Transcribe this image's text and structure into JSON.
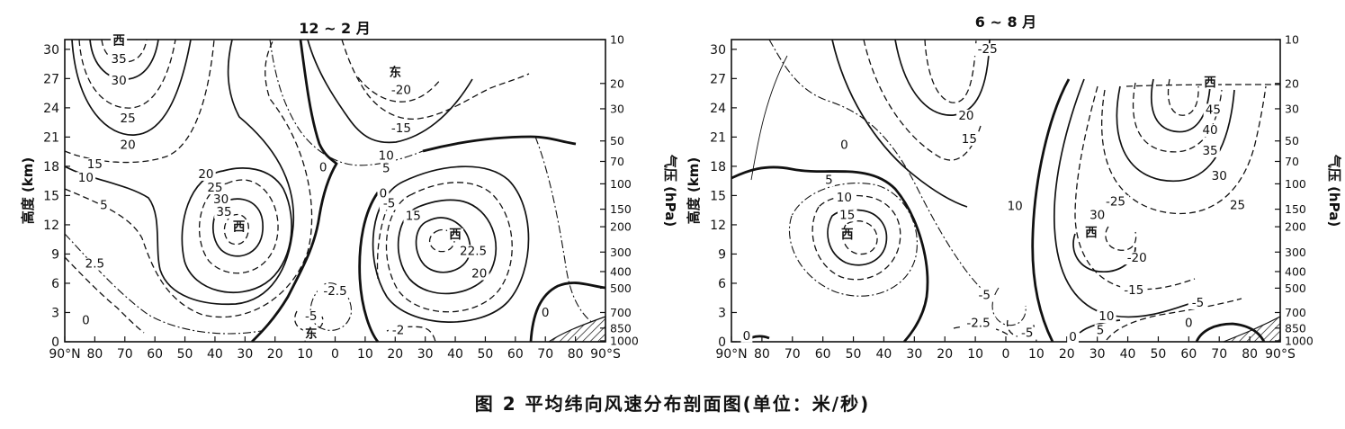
{
  "caption": "图 2   平均纬向风速分布剖面图(单位：米/秒)",
  "chart_data": [
    {
      "type": "contour",
      "title": "12 ~ 2 月",
      "ylabel_left": "高度 (km)",
      "ylabel_right": "气压 (hPa)",
      "x_ticks": [
        "90°N",
        "80",
        "70",
        "60",
        "50",
        "40",
        "30",
        "20",
        "10",
        "0",
        "10",
        "20",
        "30",
        "40",
        "50",
        "60",
        "70",
        "80",
        "90°S"
      ],
      "y_ticks": [
        "0",
        "3",
        "6",
        "9",
        "12",
        "15",
        "18",
        "21",
        "24",
        "27",
        "30"
      ],
      "p_ticks": [
        "1000",
        "850",
        "700",
        "500",
        "400",
        "300",
        "200",
        "150",
        "100",
        "70",
        "50",
        "30",
        "20",
        "10"
      ],
      "xlim": [
        -90,
        90
      ],
      "ylim": [
        0,
        31
      ],
      "contour_labels": [
        {
          "text": "西",
          "lat": -72,
          "h": 30.5
        },
        {
          "text": "35",
          "lat": -72,
          "h": 28.6
        },
        {
          "text": "30",
          "lat": -72,
          "h": 26.4
        },
        {
          "text": "25",
          "lat": -69,
          "h": 22.5
        },
        {
          "text": "20",
          "lat": -69,
          "h": 19.8
        },
        {
          "text": "15",
          "lat": -80,
          "h": 17.8
        },
        {
          "text": "10",
          "lat": -83,
          "h": 16.4
        },
        {
          "text": "5",
          "lat": -77,
          "h": 13.6
        },
        {
          "text": "2.5",
          "lat": -80,
          "h": 7.6
        },
        {
          "text": "0",
          "lat": -83,
          "h": 1.8
        },
        {
          "text": "20",
          "lat": -43,
          "h": 16.8
        },
        {
          "text": "25",
          "lat": -40,
          "h": 15.4
        },
        {
          "text": "30",
          "lat": -38,
          "h": 14.2
        },
        {
          "text": "35",
          "lat": -37,
          "h": 12.9
        },
        {
          "text": "西",
          "lat": -32,
          "h": 11.4
        },
        {
          "text": "东",
          "lat": 20,
          "h": 27.2
        },
        {
          "text": "-20",
          "lat": 22,
          "h": 25.4
        },
        {
          "text": "-15",
          "lat": 22,
          "h": 21.5
        },
        {
          "text": "10",
          "lat": 17,
          "h": 18.7
        },
        {
          "text": "5",
          "lat": 17,
          "h": 17.4
        },
        {
          "text": "0",
          "lat": -4,
          "h": 17.5
        },
        {
          "text": "0",
          "lat": 16,
          "h": 14.8
        },
        {
          "text": "-5",
          "lat": 18,
          "h": 13.8
        },
        {
          "text": "15",
          "lat": 26,
          "h": 12.5
        },
        {
          "text": "西",
          "lat": 40,
          "h": 10.6
        },
        {
          "text": "22.5",
          "lat": 46,
          "h": 8.9
        },
        {
          "text": "20",
          "lat": 48,
          "h": 6.6
        },
        {
          "text": "-2.5",
          "lat": 0,
          "h": 4.8
        },
        {
          "text": "-5",
          "lat": -8,
          "h": 2.2
        },
        {
          "text": "东",
          "lat": -8,
          "h": 0.4
        },
        {
          "text": "-2",
          "lat": 21,
          "h": 0.8
        },
        {
          "text": "0",
          "lat": 70,
          "h": 2.6
        }
      ]
    },
    {
      "type": "contour",
      "title": "6 ~ 8 月",
      "ylabel_left": "高度 (km)",
      "ylabel_right": "气压 (hPa)",
      "x_ticks": [
        "90°N",
        "80",
        "70",
        "60",
        "50",
        "40",
        "30",
        "20",
        "10",
        "0",
        "10",
        "20",
        "30",
        "40",
        "50",
        "60",
        "70",
        "80",
        "90°S"
      ],
      "y_ticks": [
        "0",
        "3",
        "6",
        "9",
        "12",
        "15",
        "18",
        "21",
        "24",
        "27",
        "30"
      ],
      "p_ticks": [
        "1000",
        "850",
        "700",
        "500",
        "400",
        "300",
        "200",
        "150",
        "100",
        "70",
        "50",
        "30",
        "20",
        "10"
      ],
      "xlim": [
        -90,
        90
      ],
      "ylim": [
        0,
        31
      ],
      "contour_labels": [
        {
          "text": "-25",
          "lat": -6,
          "h": 29.6
        },
        {
          "text": "20",
          "lat": -13,
          "h": 22.8
        },
        {
          "text": "15",
          "lat": -12,
          "h": 20.4
        },
        {
          "text": "10",
          "lat": 3,
          "h": 13.5
        },
        {
          "text": "0",
          "lat": -53,
          "h": 19.8
        },
        {
          "text": "5",
          "lat": -58,
          "h": 16.2
        },
        {
          "text": "10",
          "lat": -53,
          "h": 14.4
        },
        {
          "text": "15",
          "lat": -52,
          "h": 12.6
        },
        {
          "text": "西",
          "lat": -52,
          "h": 10.6
        },
        {
          "text": "西",
          "lat": 67,
          "h": 26.2
        },
        {
          "text": "45",
          "lat": 68,
          "h": 23.4
        },
        {
          "text": "40",
          "lat": 67,
          "h": 21.3
        },
        {
          "text": "35",
          "lat": 67,
          "h": 19.2
        },
        {
          "text": "30",
          "lat": 70,
          "h": 16.6
        },
        {
          "text": "25",
          "lat": 76,
          "h": 13.6
        },
        {
          "text": "-25",
          "lat": 36,
          "h": 14.0
        },
        {
          "text": "30",
          "lat": 30,
          "h": 12.6
        },
        {
          "text": "西",
          "lat": 28,
          "h": 10.8
        },
        {
          "text": "-20",
          "lat": 43,
          "h": 8.2
        },
        {
          "text": "-15",
          "lat": 42,
          "h": 4.9
        },
        {
          "text": "10",
          "lat": 33,
          "h": 2.2
        },
        {
          "text": "5",
          "lat": 31,
          "h": 0.8
        },
        {
          "text": "0",
          "lat": 22,
          "h": 0.1
        },
        {
          "text": "-5",
          "lat": -7,
          "h": 4.4
        },
        {
          "text": "-2.5",
          "lat": -9,
          "h": 1.5
        },
        {
          "text": "-5",
          "lat": 7,
          "h": 0.5
        },
        {
          "text": "-5",
          "lat": 63,
          "h": 3.6
        },
        {
          "text": "0",
          "lat": 60,
          "h": 1.5
        },
        {
          "text": "0",
          "lat": -85,
          "h": 0.2
        }
      ]
    }
  ]
}
